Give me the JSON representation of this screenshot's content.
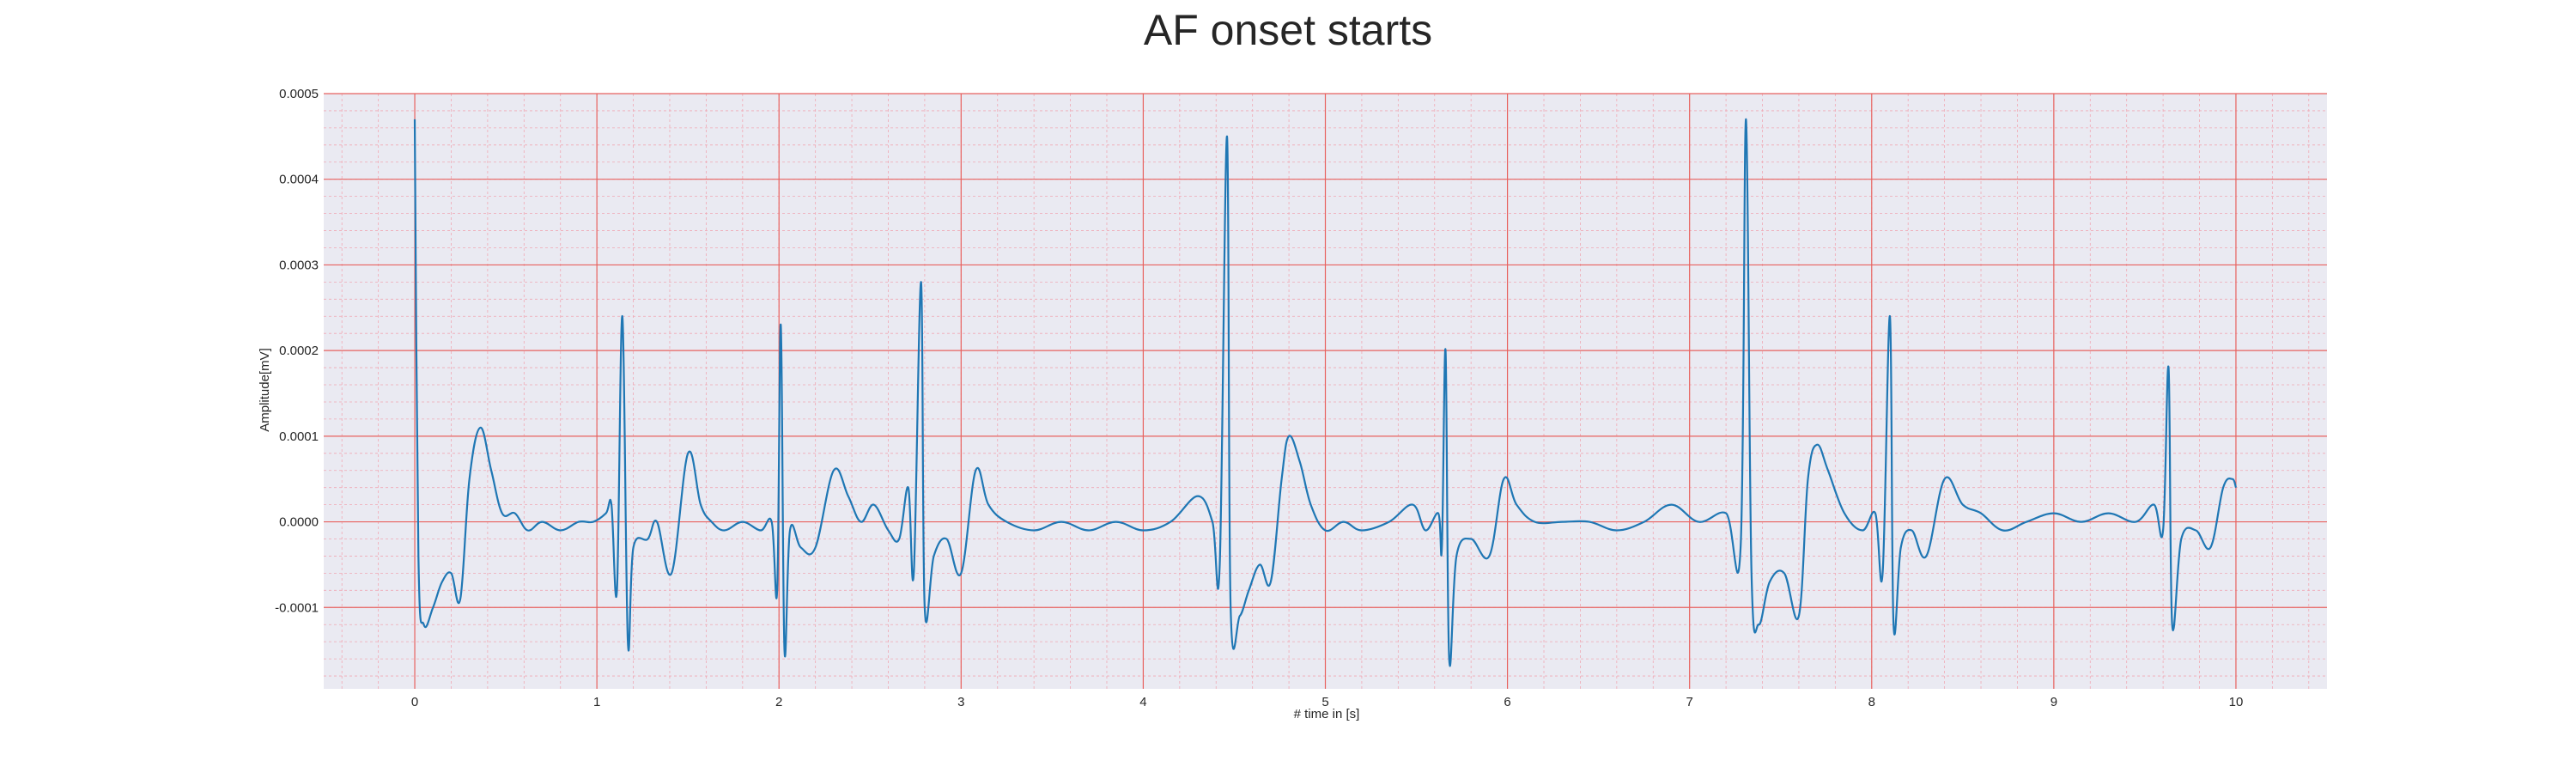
{
  "chart_data": {
    "type": "line",
    "title": "AF onset starts",
    "xlabel": "# time in [s]",
    "ylabel": "Amplitude[mV]",
    "xlim": [
      -0.5,
      10.5
    ],
    "ylim": [
      -0.000195,
      0.0005
    ],
    "x_ticks": [
      0,
      1,
      2,
      3,
      4,
      5,
      6,
      7,
      8,
      9,
      10
    ],
    "x_tick_labels": [
      "0",
      "1",
      "2",
      "3",
      "4",
      "5",
      "6",
      "7",
      "8",
      "9",
      "10"
    ],
    "y_ticks": [
      -0.0001,
      0,
      0.0001,
      0.0002,
      0.0003,
      0.0004,
      0.0005
    ],
    "y_tick_labels": [
      "-0.0001",
      "0.0000",
      "0.0001",
      "0.0002",
      "0.0003",
      "0.0004",
      "0.0005"
    ],
    "grid": true,
    "x_minor_step": 0.2,
    "y_minor_step": 2e-05,
    "series": [
      {
        "color": "#1f77b4",
        "points": [
          [
            0.0,
            0.00047
          ],
          [
            0.02,
            -4e-05
          ],
          [
            0.05,
            -0.00012
          ],
          [
            0.1,
            -0.0001
          ],
          [
            0.15,
            -7e-05
          ],
          [
            0.2,
            -6e-05
          ],
          [
            0.25,
            -9e-05
          ],
          [
            0.3,
            5e-05
          ],
          [
            0.36,
            0.00011
          ],
          [
            0.42,
            6e-05
          ],
          [
            0.48,
            1e-05
          ],
          [
            0.55,
            1e-05
          ],
          [
            0.62,
            -1e-05
          ],
          [
            0.7,
            0.0
          ],
          [
            0.8,
            -1e-05
          ],
          [
            0.9,
            0.0
          ],
          [
            0.98,
            0.0
          ],
          [
            1.05,
            1e-05
          ],
          [
            1.08,
            2e-05
          ],
          [
            1.11,
            -8e-05
          ],
          [
            1.14,
            0.00024
          ],
          [
            1.17,
            -0.00014
          ],
          [
            1.2,
            -3e-05
          ],
          [
            1.28,
            -2e-05
          ],
          [
            1.33,
            0.0
          ],
          [
            1.41,
            -6e-05
          ],
          [
            1.5,
            8e-05
          ],
          [
            1.57,
            2e-05
          ],
          [
            1.63,
            0.0
          ],
          [
            1.7,
            -1e-05
          ],
          [
            1.8,
            0.0
          ],
          [
            1.9,
            -1e-05
          ],
          [
            1.96,
            0.0
          ],
          [
            1.99,
            -8e-05
          ],
          [
            2.01,
            0.00023
          ],
          [
            2.03,
            -0.00015
          ],
          [
            2.06,
            -1e-05
          ],
          [
            2.12,
            -3e-05
          ],
          [
            2.2,
            -3e-05
          ],
          [
            2.3,
            6e-05
          ],
          [
            2.38,
            3e-05
          ],
          [
            2.45,
            0.0
          ],
          [
            2.52,
            2e-05
          ],
          [
            2.6,
            -1e-05
          ],
          [
            2.66,
            -2e-05
          ],
          [
            2.71,
            4e-05
          ],
          [
            2.74,
            -6e-05
          ],
          [
            2.78,
            0.00028
          ],
          [
            2.8,
            -0.0001
          ],
          [
            2.85,
            -4e-05
          ],
          [
            2.92,
            -2e-05
          ],
          [
            3.0,
            -6e-05
          ],
          [
            3.08,
            6e-05
          ],
          [
            3.15,
            2e-05
          ],
          [
            3.25,
            0.0
          ],
          [
            3.4,
            -1e-05
          ],
          [
            3.55,
            0.0
          ],
          [
            3.7,
            -1e-05
          ],
          [
            3.85,
            0.0
          ],
          [
            4.0,
            -1e-05
          ],
          [
            4.15,
            0.0
          ],
          [
            4.3,
            3e-05
          ],
          [
            4.38,
            0.0
          ],
          [
            4.42,
            -5e-05
          ],
          [
            4.46,
            0.00045
          ],
          [
            4.48,
            -0.0001
          ],
          [
            4.53,
            -0.00011
          ],
          [
            4.58,
            -8e-05
          ],
          [
            4.64,
            -5e-05
          ],
          [
            4.7,
            -7e-05
          ],
          [
            4.76,
            5e-05
          ],
          [
            4.8,
            0.0001
          ],
          [
            4.86,
            7e-05
          ],
          [
            4.92,
            2e-05
          ],
          [
            5.0,
            -1e-05
          ],
          [
            5.1,
            0.0
          ],
          [
            5.2,
            -1e-05
          ],
          [
            5.35,
            0.0
          ],
          [
            5.48,
            2e-05
          ],
          [
            5.55,
            -1e-05
          ],
          [
            5.62,
            1e-05
          ],
          [
            5.64,
            -3e-05
          ],
          [
            5.66,
            0.0002
          ],
          [
            5.68,
            -0.00016
          ],
          [
            5.72,
            -4e-05
          ],
          [
            5.8,
            -2e-05
          ],
          [
            5.9,
            -4e-05
          ],
          [
            5.98,
            5e-05
          ],
          [
            6.05,
            2e-05
          ],
          [
            6.15,
            0.0
          ],
          [
            6.3,
            0.0
          ],
          [
            6.45,
            0.0
          ],
          [
            6.6,
            -1e-05
          ],
          [
            6.75,
            0.0
          ],
          [
            6.9,
            2e-05
          ],
          [
            7.05,
            0.0
          ],
          [
            7.2,
            1e-05
          ],
          [
            7.28,
            -3e-05
          ],
          [
            7.31,
            0.00047
          ],
          [
            7.34,
            -6e-05
          ],
          [
            7.38,
            -0.00012
          ],
          [
            7.44,
            -7e-05
          ],
          [
            7.52,
            -6e-05
          ],
          [
            7.6,
            -0.00011
          ],
          [
            7.65,
            5e-05
          ],
          [
            7.7,
            9e-05
          ],
          [
            7.76,
            6e-05
          ],
          [
            7.85,
            1e-05
          ],
          [
            7.95,
            -1e-05
          ],
          [
            8.02,
            1e-05
          ],
          [
            8.06,
            -6e-05
          ],
          [
            8.1,
            0.00024
          ],
          [
            8.12,
            -0.00012
          ],
          [
            8.16,
            -3e-05
          ],
          [
            8.22,
            -1e-05
          ],
          [
            8.3,
            -4e-05
          ],
          [
            8.4,
            5e-05
          ],
          [
            8.5,
            2e-05
          ],
          [
            8.6,
            1e-05
          ],
          [
            8.72,
            -1e-05
          ],
          [
            8.85,
            0.0
          ],
          [
            9.0,
            1e-05
          ],
          [
            9.15,
            0.0
          ],
          [
            9.3,
            1e-05
          ],
          [
            9.45,
            0.0
          ],
          [
            9.55,
            2e-05
          ],
          [
            9.6,
            -1e-05
          ],
          [
            9.63,
            0.00018
          ],
          [
            9.65,
            -0.00012
          ],
          [
            9.7,
            -2e-05
          ],
          [
            9.78,
            -1e-05
          ],
          [
            9.86,
            -3e-05
          ],
          [
            9.93,
            4e-05
          ],
          [
            9.98,
            5e-05
          ],
          [
            10.0,
            4e-05
          ]
        ]
      }
    ]
  }
}
